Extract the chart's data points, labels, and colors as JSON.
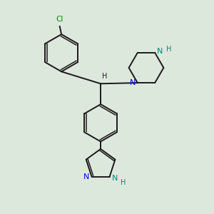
{
  "background_color": "#dde8dd",
  "bond_color": "#1a1a1a",
  "N_color": "#0000ee",
  "NH_color": "#008877",
  "Cl_color": "#008800",
  "figsize": [
    3.0,
    3.0
  ],
  "dpi": 100,
  "xlim": [
    0,
    10
  ],
  "ylim": [
    0,
    10
  ]
}
